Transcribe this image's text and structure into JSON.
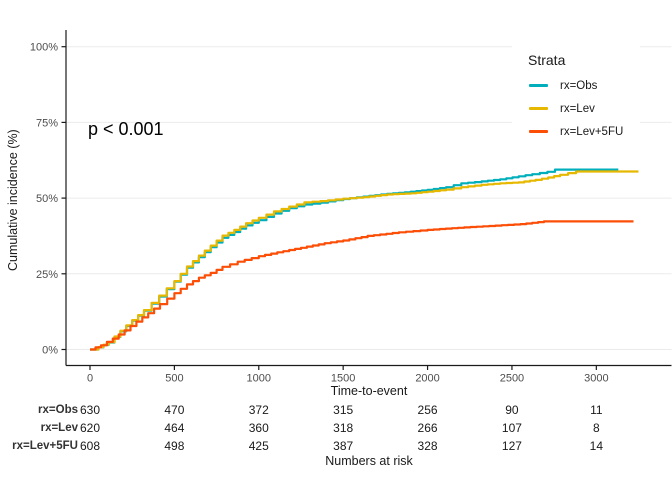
{
  "annotation": {
    "p_value": "p < 0.001"
  },
  "axes": {
    "x_title": "Time-to-event",
    "y_title": "Cumulative incidence (%)",
    "x_tick_labels": [
      "0",
      "500",
      "1000",
      "1500",
      "2000",
      "2500",
      "3000"
    ],
    "y_tick_labels": [
      "0%",
      "25%",
      "50%",
      "75%",
      "100%"
    ]
  },
  "legend": {
    "title": "Strata"
  },
  "risk_table": {
    "caption": "Numbers at risk",
    "columns": [
      0,
      500,
      1000,
      1500,
      2000,
      2500,
      3000
    ],
    "rows": [
      {
        "label": "rx=Obs",
        "values": [
          630,
          470,
          372,
          315,
          256,
          90,
          11
        ]
      },
      {
        "label": "rx=Lev",
        "values": [
          620,
          464,
          360,
          318,
          266,
          107,
          8
        ]
      },
      {
        "label": "rx=Lev+5FU",
        "values": [
          608,
          498,
          425,
          387,
          328,
          127,
          14
        ]
      }
    ]
  },
  "colors": {
    "grid": "#EBEBEB",
    "axis": "#1a1a1a",
    "tick_text": "#4d4d4d"
  },
  "chart_data": {
    "type": "line",
    "subtype": "step-cumulative-incidence",
    "title": "",
    "xlabel": "Time-to-event",
    "ylabel": "Cumulative incidence (%)",
    "annotation": "p < 0.001",
    "xlim": [
      0,
      3440
    ],
    "ylim": [
      0,
      100
    ],
    "x_ticks": [
      0,
      500,
      1000,
      1500,
      2000,
      2500,
      3000
    ],
    "y_ticks": [
      0,
      25,
      50,
      75,
      100
    ],
    "grid": "horizontal-only",
    "legend_position": "top-right-inside",
    "series": [
      {
        "name": "rx=Obs",
        "color": "#00AFBB",
        "points": [
          [
            0,
            0
          ],
          [
            50,
            0.7
          ],
          [
            110,
            2.3
          ],
          [
            180,
            6.0
          ],
          [
            250,
            9.5
          ],
          [
            320,
            12.8
          ],
          [
            410,
            17.5
          ],
          [
            500,
            22.4
          ],
          [
            575,
            27.0
          ],
          [
            645,
            30.5
          ],
          [
            715,
            33.8
          ],
          [
            785,
            36.9
          ],
          [
            855,
            38.8
          ],
          [
            925,
            41.0
          ],
          [
            1000,
            42.7
          ],
          [
            1090,
            44.9
          ],
          [
            1180,
            46.7
          ],
          [
            1270,
            47.9
          ],
          [
            1365,
            48.5
          ],
          [
            1500,
            49.7
          ],
          [
            1620,
            50.5
          ],
          [
            1760,
            51.4
          ],
          [
            1900,
            52.1
          ],
          [
            2000,
            52.7
          ],
          [
            2110,
            53.6
          ],
          [
            2200,
            54.9
          ],
          [
            2320,
            55.5
          ],
          [
            2430,
            56.2
          ],
          [
            2540,
            57.2
          ],
          [
            2620,
            57.9
          ],
          [
            2710,
            58.7
          ],
          [
            2755,
            59.4
          ],
          [
            3130,
            59.4
          ]
        ]
      },
      {
        "name": "rx=Lev",
        "color": "#E7B800",
        "points": [
          [
            0,
            0
          ],
          [
            50,
            0.8
          ],
          [
            110,
            2.4
          ],
          [
            180,
            6.2
          ],
          [
            250,
            9.7
          ],
          [
            320,
            13.0
          ],
          [
            410,
            17.8
          ],
          [
            500,
            22.6
          ],
          [
            575,
            27.4
          ],
          [
            645,
            31.0
          ],
          [
            715,
            34.3
          ],
          [
            785,
            37.6
          ],
          [
            855,
            39.5
          ],
          [
            925,
            41.7
          ],
          [
            1000,
            43.5
          ],
          [
            1090,
            45.6
          ],
          [
            1180,
            47.2
          ],
          [
            1270,
            48.6
          ],
          [
            1365,
            49.0
          ],
          [
            1500,
            49.8
          ],
          [
            1620,
            50.3
          ],
          [
            1760,
            51.2
          ],
          [
            1900,
            51.6
          ],
          [
            2000,
            52.1
          ],
          [
            2110,
            52.8
          ],
          [
            2200,
            53.6
          ],
          [
            2320,
            54.4
          ],
          [
            2430,
            54.9
          ],
          [
            2540,
            55.2
          ],
          [
            2640,
            56.0
          ],
          [
            2715,
            56.8
          ],
          [
            2785,
            57.7
          ],
          [
            2880,
            58.8
          ],
          [
            3250,
            58.8
          ]
        ]
      },
      {
        "name": "rx=Lev+5FU",
        "color": "#FC4E07",
        "points": [
          [
            0,
            0
          ],
          [
            65,
            1.4
          ],
          [
            135,
            3.6
          ],
          [
            205,
            6.3
          ],
          [
            275,
            9.2
          ],
          [
            345,
            12.0
          ],
          [
            415,
            15.0
          ],
          [
            500,
            18.6
          ],
          [
            575,
            21.5
          ],
          [
            645,
            23.7
          ],
          [
            715,
            25.3
          ],
          [
            785,
            27.3
          ],
          [
            875,
            29.0
          ],
          [
            1000,
            30.8
          ],
          [
            1110,
            32.1
          ],
          [
            1250,
            33.6
          ],
          [
            1390,
            35.1
          ],
          [
            1500,
            36.0
          ],
          [
            1645,
            37.5
          ],
          [
            1830,
            38.7
          ],
          [
            2000,
            39.5
          ],
          [
            2180,
            40.2
          ],
          [
            2365,
            40.8
          ],
          [
            2550,
            41.4
          ],
          [
            2690,
            42.3
          ],
          [
            3220,
            42.3
          ]
        ]
      }
    ]
  }
}
